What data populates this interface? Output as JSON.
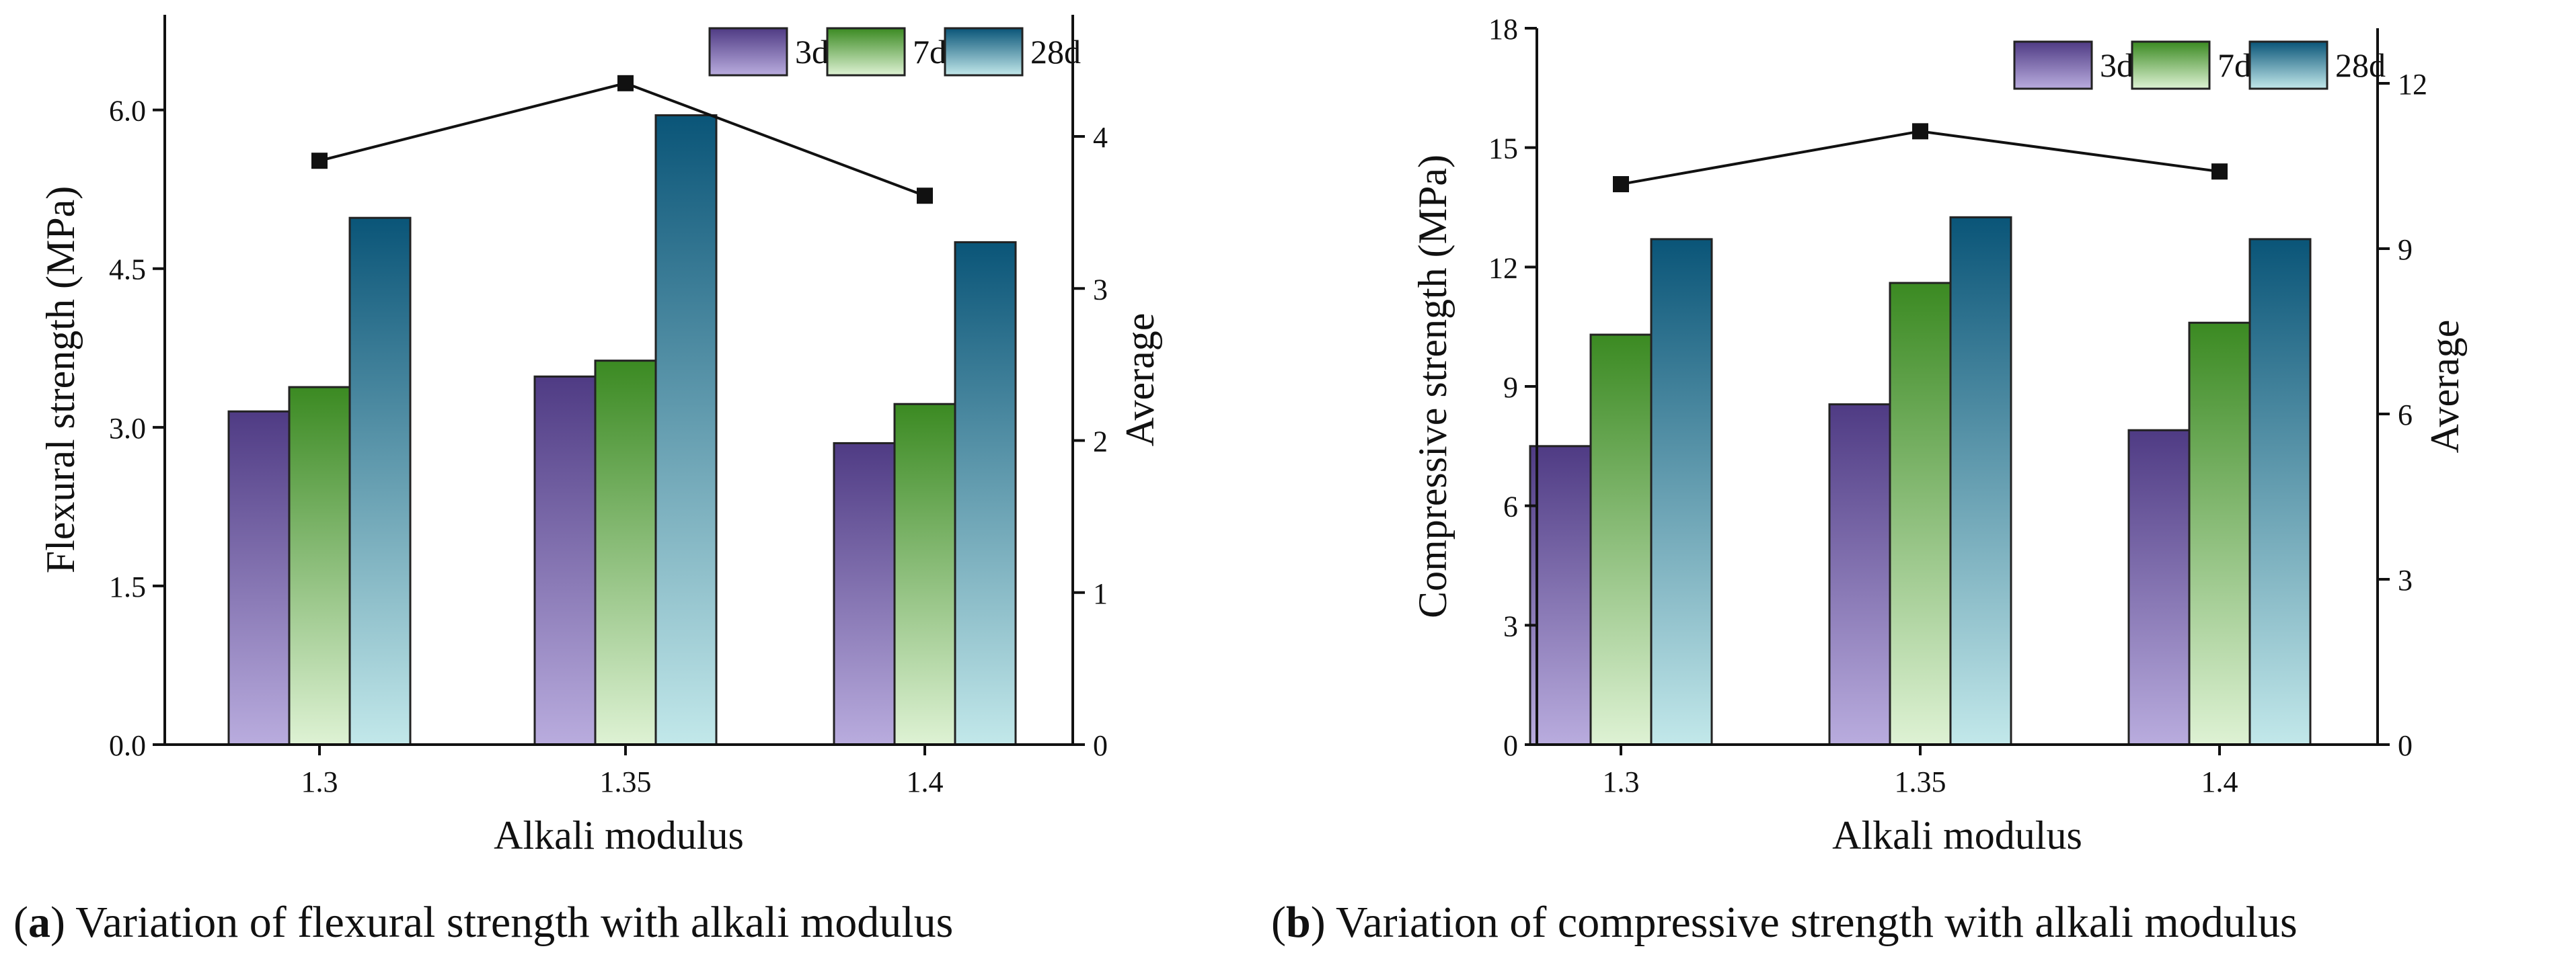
{
  "chart_data": [
    {
      "type": "bar",
      "panel": "a",
      "categories": [
        "1.3",
        "1.35",
        "1.4"
      ],
      "series": [
        {
          "name": "3d",
          "values": [
            3.15,
            3.48,
            2.85
          ]
        },
        {
          "name": "7d",
          "values": [
            3.38,
            3.63,
            3.22
          ]
        },
        {
          "name": "28d",
          "values": [
            4.98,
            5.95,
            4.75
          ]
        }
      ],
      "average": {
        "values": [
          3.84,
          4.35,
          3.61
        ],
        "ylim": [
          0,
          4.8
        ],
        "ticks": [
          0,
          1,
          2,
          3,
          4
        ]
      },
      "xlabel": "Alkali modulus",
      "ylabel": "Flexural strength (MPa)",
      "y2label": "Average",
      "ylim": [
        0,
        6.9
      ],
      "yticks": [
        "0.0",
        "1.5",
        "3.0",
        "4.5",
        "6.0"
      ],
      "legend": "top-right",
      "grid": false,
      "colors": {
        "3d": [
          "#4f3b84",
          "#b9acde"
        ],
        "7d": [
          "#3b8a22",
          "#def2d4"
        ],
        "28d": [
          "#0a5578",
          "#c2e8ea"
        ]
      }
    },
    {
      "type": "bar",
      "panel": "b",
      "categories": [
        "1.3",
        "1.35",
        "1.4"
      ],
      "series": [
        {
          "name": "3d",
          "values": [
            7.5,
            8.55,
            7.9
          ]
        },
        {
          "name": "7d",
          "values": [
            10.3,
            11.6,
            10.6
          ]
        },
        {
          "name": "28d",
          "values": [
            12.7,
            13.25,
            12.7
          ]
        }
      ],
      "average": {
        "values": [
          10.17,
          11.13,
          10.4
        ],
        "ylim": [
          0,
          13
        ],
        "ticks": [
          0,
          3,
          6,
          9,
          12
        ]
      },
      "xlabel": "Alkali modulus",
      "ylabel": "Compressive strength (MPa)",
      "y2label": "Average",
      "ylim": [
        0,
        18
      ],
      "yticks": [
        "0",
        "3",
        "6",
        "9",
        "12",
        "15",
        "18"
      ],
      "legend": "top-right",
      "grid": false,
      "colors": {
        "3d": [
          "#4f3b84",
          "#b9acde"
        ],
        "7d": [
          "#3b8a22",
          "#def2d4"
        ],
        "28d": [
          "#0a5578",
          "#c2e8ea"
        ]
      }
    }
  ],
  "captions": {
    "a_letter": "a",
    "a_text": " Variation of flexural strength with alkali modulus",
    "b_letter": "b",
    "b_text": " Variation of compressive strength with alkali modulus"
  }
}
